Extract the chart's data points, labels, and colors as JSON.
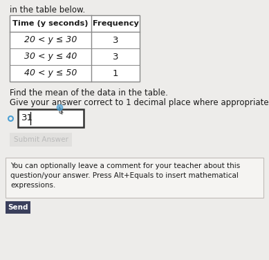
{
  "title_text": "in the table below.",
  "table_headers": [
    "Time (y seconds)",
    "Frequency"
  ],
  "table_rows": [
    [
      "20 < y ≤ 30",
      "3"
    ],
    [
      "30 < y ≤ 40",
      "3"
    ],
    [
      "40 < y ≤ 50",
      "1"
    ]
  ],
  "question_line1": "Find the mean of the data in the table.",
  "question_line2": "Give your answer correct to 1 decimal place where appropriate.",
  "answer_value": "31",
  "submit_button_text": "Submit Answer",
  "comment_text": "You can optionally leave a comment for your teacher about this\nquestion/your answer. Press Alt+Equals to insert mathematical\nexpressions.",
  "send_button_text": "Send",
  "bg_color": "#edecea",
  "table_bg": "#ffffff",
  "comment_box_bg": "#f5f4f2",
  "send_btn_bg": "#3a3f5c",
  "send_btn_text_color": "#ffffff",
  "answer_box_border": "#333333",
  "table_border": "#888888",
  "text_color": "#1a1a1a",
  "submit_answer_color": "#bbbbbb",
  "submit_btn_bg": "#e0dedd",
  "cursor_color": "#4a9fd4"
}
